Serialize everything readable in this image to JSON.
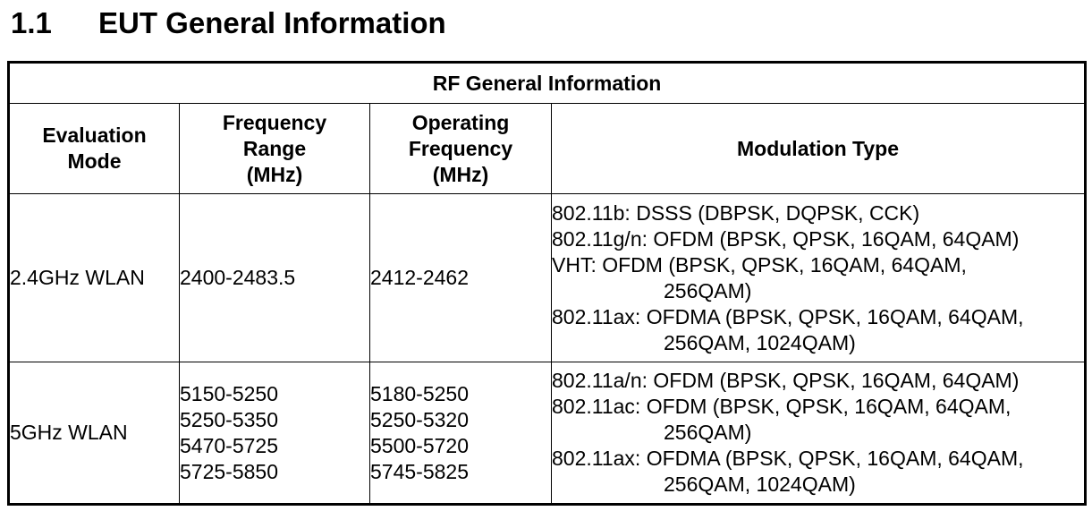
{
  "section": {
    "number": "1.1",
    "title": "EUT General Information"
  },
  "table": {
    "title": "RF General Information",
    "headers": {
      "mode": [
        "Evaluation",
        "Mode"
      ],
      "range": [
        "Frequency",
        "Range",
        "(MHz)"
      ],
      "operating": [
        "Operating",
        "Frequency",
        "(MHz)"
      ],
      "modulation": "Modulation Type"
    },
    "rows": [
      {
        "mode": "2.4GHz WLAN",
        "range": [
          "2400-2483.5"
        ],
        "operating": [
          "2412-2462"
        ],
        "modulation": [
          {
            "line": "802.11b: DSSS (DBPSK, DQPSK, CCK)"
          },
          {
            "line": "802.11g/n: OFDM (BPSK, QPSK, 16QAM, 64QAM)"
          },
          {
            "line": "VHT: OFDM (BPSK, QPSK, 16QAM, 64QAM,",
            "cont": "256QAM)"
          },
          {
            "line": "802.11ax: OFDMA (BPSK, QPSK, 16QAM, 64QAM,",
            "cont": "256QAM, 1024QAM)"
          }
        ]
      },
      {
        "mode": "5GHz WLAN",
        "range": [
          "5150-5250",
          "5250-5350",
          "5470-5725",
          "5725-5850"
        ],
        "operating": [
          "5180-5250",
          "5250-5320",
          "5500-5720",
          "5745-5825"
        ],
        "modulation": [
          {
            "line": "802.11a/n: OFDM (BPSK, QPSK, 16QAM, 64QAM)"
          },
          {
            "line": "802.11ac: OFDM (BPSK, QPSK, 16QAM, 64QAM,",
            "cont": "256QAM)"
          },
          {
            "line": "802.11ax: OFDMA (BPSK, QPSK, 16QAM, 64QAM,",
            "cont": "256QAM, 1024QAM)"
          }
        ]
      }
    ]
  }
}
